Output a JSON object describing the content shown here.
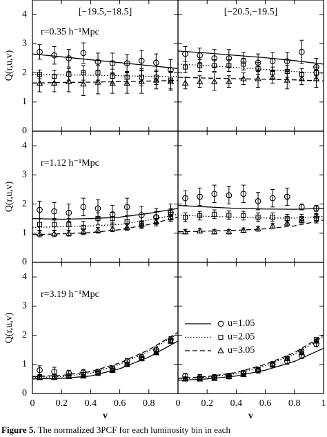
{
  "chart_data": [
    {
      "type": "scatter",
      "title": "[−19.5,−18.5]",
      "annotation": "r=0.35 h⁻¹Mpc",
      "ylabel": "Q(r,u,v)",
      "xlim": [
        0,
        1
      ],
      "ylim": [
        0,
        4.5
      ],
      "xticks": [
        0,
        0.2,
        0.4,
        0.6,
        0.8
      ],
      "yticks": [
        0,
        1,
        2,
        3,
        4
      ],
      "xtick_labels": false,
      "ytick_labels": true,
      "color": "#000000",
      "points_x": [
        0.05,
        0.15,
        0.25,
        0.35,
        0.45,
        0.55,
        0.65,
        0.75,
        0.85,
        0.95
      ],
      "model_x": [
        0,
        0.2,
        0.4,
        0.6,
        0.8,
        1
      ],
      "series": [
        {
          "marker": "circle",
          "dash": "solid",
          "values": [
            2.72,
            2.6,
            2.5,
            2.68,
            2.38,
            2.33,
            2.33,
            2.42,
            2.35,
            2.1
          ],
          "errors": [
            0.25,
            0.3,
            0.3,
            0.35,
            0.3,
            0.35,
            0.3,
            0.35,
            0.3,
            0.35
          ],
          "model": [
            2.65,
            2.55,
            2.45,
            2.35,
            2.25,
            2.15
          ]
        },
        {
          "marker": "square",
          "dash": "dotted",
          "values": [
            1.95,
            1.88,
            1.95,
            2.0,
            2.0,
            1.88,
            1.85,
            1.85,
            1.85,
            1.75
          ],
          "errors": [
            0.15,
            0.2,
            0.2,
            0.25,
            0.25,
            0.25,
            0.2,
            0.3,
            0.25,
            0.3
          ],
          "model": [
            1.95,
            1.93,
            1.92,
            1.9,
            1.88,
            1.87
          ]
        },
        {
          "marker": "triangle",
          "dash": "dashed",
          "values": [
            1.65,
            1.65,
            1.7,
            1.62,
            1.68,
            1.65,
            1.65,
            1.7,
            1.75,
            1.7
          ],
          "errors": [
            0.3,
            0.3,
            0.35,
            0.4,
            0.4,
            0.35,
            0.35,
            0.4,
            0.3,
            0.3
          ],
          "model": [
            1.65,
            1.67,
            1.68,
            1.7,
            1.72,
            1.74
          ]
        }
      ]
    },
    {
      "type": "scatter",
      "title": "[−20.5,−19.5]",
      "xlim": [
        0,
        1
      ],
      "ylim": [
        0,
        4.5
      ],
      "xticks": [
        0,
        0.2,
        0.4,
        0.6,
        0.8,
        1
      ],
      "yticks": [
        0,
        1,
        2,
        3,
        4
      ],
      "xtick_labels": false,
      "ytick_labels": false,
      "color": "#000000",
      "points_x": [
        0.05,
        0.15,
        0.25,
        0.35,
        0.45,
        0.55,
        0.65,
        0.75,
        0.85,
        0.95
      ],
      "model_x": [
        0,
        0.2,
        0.4,
        0.6,
        0.8,
        1
      ],
      "series": [
        {
          "marker": "circle",
          "dash": "solid",
          "values": [
            2.65,
            2.6,
            2.5,
            2.5,
            2.4,
            2.35,
            2.4,
            2.4,
            2.72,
            2.2
          ],
          "errors": [
            0.25,
            0.25,
            0.3,
            0.3,
            0.3,
            0.3,
            0.3,
            0.3,
            0.4,
            0.3
          ],
          "model": [
            2.75,
            2.68,
            2.6,
            2.52,
            2.42,
            2.3
          ]
        },
        {
          "marker": "square",
          "dash": "dotted",
          "values": [
            2.2,
            2.25,
            2.25,
            2.25,
            2.3,
            2.15,
            2.0,
            2.05,
            1.95,
            2.0
          ],
          "errors": [
            0.2,
            0.2,
            0.2,
            0.2,
            0.2,
            0.2,
            0.2,
            0.2,
            0.2,
            0.2
          ],
          "model": [
            2.3,
            2.25,
            2.18,
            2.12,
            2.05,
            1.98
          ]
        },
        {
          "marker": "triangle",
          "dash": "dashed",
          "values": [
            1.65,
            1.7,
            1.7,
            1.7,
            1.8,
            1.8,
            1.85,
            1.75,
            1.8,
            1.8
          ],
          "errors": [
            0.2,
            0.2,
            0.3,
            0.2,
            0.2,
            0.3,
            0.2,
            0.3,
            0.2,
            0.3
          ],
          "model": [
            1.85,
            1.82,
            1.8,
            1.78,
            1.76,
            1.72
          ]
        }
      ]
    },
    {
      "type": "scatter",
      "annotation": "r=1.12 h⁻¹Mpc",
      "ylabel": "Q(r,u,v)",
      "xlim": [
        0,
        1
      ],
      "ylim": [
        0,
        4.5
      ],
      "xticks": [
        0,
        0.2,
        0.4,
        0.6,
        0.8
      ],
      "yticks": [
        0,
        1,
        2,
        3,
        4
      ],
      "xtick_labels": false,
      "ytick_labels": true,
      "color": "#000000",
      "points_x": [
        0.05,
        0.15,
        0.25,
        0.35,
        0.45,
        0.55,
        0.65,
        0.75,
        0.85,
        0.95
      ],
      "model_x": [
        0,
        0.2,
        0.4,
        0.6,
        0.8,
        1
      ],
      "series": [
        {
          "marker": "circle",
          "dash": "solid",
          "values": [
            1.8,
            1.75,
            1.7,
            1.9,
            1.85,
            1.65,
            1.9,
            1.62,
            1.55,
            1.7
          ],
          "errors": [
            0.3,
            0.3,
            0.3,
            0.3,
            0.3,
            0.3,
            0.3,
            0.3,
            0.3,
            0.3
          ],
          "model": [
            1.5,
            1.48,
            1.5,
            1.55,
            1.68,
            1.85
          ]
        },
        {
          "marker": "square",
          "dash": "dotted",
          "values": [
            1.3,
            1.3,
            1.3,
            1.2,
            1.5,
            1.5,
            1.4,
            1.35,
            1.55,
            1.65
          ],
          "errors": [
            0.2,
            0.2,
            0.2,
            0.2,
            0.2,
            0.2,
            0.2,
            0.2,
            0.2,
            0.2
          ],
          "model": [
            1.2,
            1.22,
            1.25,
            1.3,
            1.45,
            1.65
          ]
        },
        {
          "marker": "triangle",
          "dash": "dashed",
          "values": [
            0.98,
            0.98,
            1.0,
            1.05,
            1.1,
            1.15,
            1.2,
            1.3,
            1.4,
            1.55
          ],
          "errors": [
            0.1,
            0.1,
            0.1,
            0.1,
            0.1,
            0.1,
            0.1,
            0.1,
            0.1,
            0.1
          ],
          "model": [
            0.95,
            0.98,
            1.02,
            1.12,
            1.3,
            1.55
          ]
        }
      ]
    },
    {
      "type": "scatter",
      "xlim": [
        0,
        1
      ],
      "ylim": [
        0,
        4.5
      ],
      "xticks": [
        0,
        0.2,
        0.4,
        0.6,
        0.8,
        1
      ],
      "yticks": [
        0,
        1,
        2,
        3,
        4
      ],
      "xtick_labels": false,
      "ytick_labels": false,
      "color": "#000000",
      "points_x": [
        0.05,
        0.15,
        0.25,
        0.35,
        0.45,
        0.55,
        0.65,
        0.75,
        0.85,
        0.95
      ],
      "model_x": [
        0,
        0.2,
        0.4,
        0.6,
        0.8,
        1
      ],
      "series": [
        {
          "marker": "circle",
          "dash": "solid",
          "values": [
            2.2,
            2.25,
            2.35,
            2.3,
            2.35,
            2.1,
            2.2,
            2.25,
            1.9,
            1.85
          ],
          "errors": [
            0.25,
            0.3,
            0.3,
            0.3,
            0.3,
            0.3,
            0.3,
            0.3,
            0.1,
            0.1
          ],
          "model": [
            1.95,
            1.9,
            1.85,
            1.83,
            1.82,
            1.85
          ]
        },
        {
          "marker": "square",
          "dash": "dotted",
          "values": [
            1.55,
            1.6,
            1.65,
            1.62,
            1.6,
            1.55,
            1.55,
            1.5,
            1.5,
            1.5
          ],
          "errors": [
            0.15,
            0.15,
            0.15,
            0.15,
            0.15,
            0.15,
            0.15,
            0.15,
            0.15,
            0.15
          ],
          "model": [
            1.62,
            1.58,
            1.55,
            1.52,
            1.52,
            1.58
          ]
        },
        {
          "marker": "triangle",
          "dash": "dashed",
          "values": [
            1.05,
            1.08,
            1.05,
            1.05,
            1.1,
            1.15,
            1.25,
            1.35,
            1.45,
            1.6
          ],
          "errors": [
            0.08,
            0.08,
            0.08,
            0.08,
            0.08,
            0.08,
            0.08,
            0.08,
            0.08,
            0.08
          ],
          "model": [
            1.05,
            1.07,
            1.1,
            1.15,
            1.25,
            1.45
          ]
        }
      ]
    },
    {
      "type": "scatter",
      "annotation": "r=3.19 h⁻¹Mpc",
      "ylabel": "Q(r,u,v)",
      "xlabel": "v",
      "xlim": [
        0,
        1
      ],
      "ylim": [
        0,
        4.5
      ],
      "xticks": [
        0,
        0.2,
        0.4,
        0.6,
        0.8
      ],
      "yticks": [
        0,
        1,
        2,
        3,
        4
      ],
      "xtick_labels": true,
      "ytick_labels": true,
      "color": "#000000",
      "points_x": [
        0.05,
        0.15,
        0.25,
        0.35,
        0.45,
        0.55,
        0.65,
        0.75,
        0.85,
        0.95
      ],
      "model_x": [
        0,
        0.2,
        0.4,
        0.6,
        0.8,
        1
      ],
      "series": [
        {
          "marker": "circle",
          "dash": "solid",
          "values": [
            0.8,
            0.75,
            0.7,
            0.72,
            0.75,
            0.85,
            1.1,
            1.25,
            1.5,
            1.85
          ],
          "errors": [
            0.15,
            0.15,
            0.1,
            0.1,
            0.08,
            0.1,
            0.1,
            0.1,
            0.1,
            0.1
          ],
          "model": [
            0.5,
            0.52,
            0.6,
            0.85,
            1.25,
            1.8
          ]
        },
        {
          "marker": "square",
          "dash": "dotted",
          "values": [
            0.55,
            0.58,
            0.6,
            0.65,
            0.7,
            0.8,
            1.0,
            1.2,
            1.45,
            1.8
          ],
          "errors": [
            0.08,
            0.08,
            0.08,
            0.08,
            0.08,
            0.08,
            0.08,
            0.08,
            0.08,
            0.08
          ],
          "model": [
            0.55,
            0.58,
            0.7,
            1.0,
            1.45,
            2.05
          ]
        },
        {
          "marker": "triangle",
          "dash": "dashed",
          "values": [
            0.55,
            0.55,
            0.58,
            0.6,
            0.7,
            0.8,
            1.0,
            1.2,
            1.4,
            1.8
          ],
          "errors": [
            0.05,
            0.05,
            0.05,
            0.05,
            0.05,
            0.05,
            0.05,
            0.05,
            0.05,
            0.05
          ],
          "model": [
            0.58,
            0.62,
            0.75,
            1.05,
            1.5,
            2.1
          ]
        }
      ]
    },
    {
      "type": "scatter",
      "xlabel": "v",
      "legend": "center-left",
      "xlim": [
        0,
        1
      ],
      "ylim": [
        0,
        4.5
      ],
      "xticks": [
        0,
        0.2,
        0.4,
        0.6,
        0.8,
        1
      ],
      "yticks": [
        0,
        1,
        2,
        3,
        4
      ],
      "xtick_labels": true,
      "ytick_labels": false,
      "color": "#000000",
      "points_x": [
        0.05,
        0.15,
        0.25,
        0.35,
        0.45,
        0.55,
        0.65,
        0.75,
        0.85,
        0.95
      ],
      "model_x": [
        0,
        0.2,
        0.4,
        0.6,
        0.8,
        1
      ],
      "series": [
        {
          "name": "u=1.05",
          "marker": "circle",
          "dash": "solid",
          "values": [
            0.6,
            0.55,
            0.55,
            0.6,
            0.7,
            0.8,
            1.0,
            1.1,
            1.3,
            1.7
          ],
          "errors": [
            0.1,
            0.1,
            0.1,
            0.1,
            0.1,
            0.1,
            0.1,
            0.1,
            0.1,
            0.1
          ],
          "model": [
            0.45,
            0.5,
            0.6,
            0.8,
            1.1,
            1.55
          ]
        },
        {
          "name": "u=2.05",
          "marker": "square",
          "dash": "dotted",
          "values": [
            0.5,
            0.52,
            0.55,
            0.6,
            0.7,
            0.82,
            1.0,
            1.2,
            1.45,
            1.85
          ],
          "errors": [
            0.06,
            0.06,
            0.06,
            0.06,
            0.06,
            0.06,
            0.06,
            0.06,
            0.06,
            0.06
          ],
          "model": [
            0.5,
            0.55,
            0.68,
            0.95,
            1.35,
            1.95
          ]
        },
        {
          "name": "u=3.05",
          "marker": "triangle",
          "dash": "dashed",
          "values": [
            0.5,
            0.5,
            0.52,
            0.58,
            0.65,
            0.8,
            1.0,
            1.2,
            1.4,
            1.8
          ],
          "errors": [
            0.05,
            0.05,
            0.05,
            0.05,
            0.05,
            0.05,
            0.05,
            0.05,
            0.05,
            0.05
          ],
          "model": [
            0.52,
            0.58,
            0.72,
            1.0,
            1.4,
            2.0
          ]
        }
      ]
    }
  ],
  "caption": {
    "label": "Figure 5.",
    "text": "The normalized 3PCF for each luminosity bin in each"
  }
}
